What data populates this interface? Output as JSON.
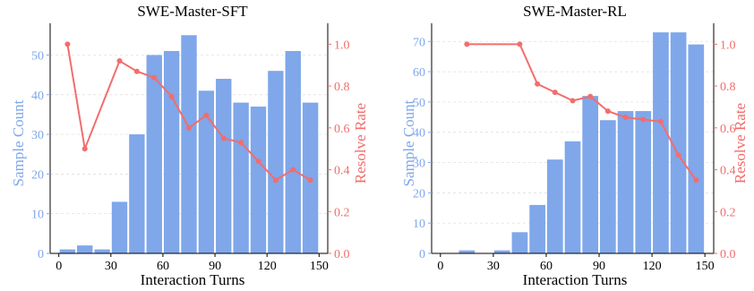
{
  "colors": {
    "bar": "#7fa7ea",
    "line": "#f26d6d",
    "left_axis_text": "#7fa7ea",
    "right_axis_text": "#f26d6d"
  },
  "chart_data": [
    {
      "type": "bar+line",
      "title": "SWE-Master-SFT",
      "xlabel": "Interaction Turns",
      "ylabel_left": "Sample Count",
      "ylabel_right": "Resolve Rate",
      "xlim": [
        -5,
        155
      ],
      "ylim_left": [
        0,
        58
      ],
      "ylim_right": [
        0,
        1.1
      ],
      "xticks": [
        0,
        30,
        60,
        90,
        120,
        150
      ],
      "yticks_left": [
        0,
        10,
        20,
        30,
        40,
        50
      ],
      "yticks_right": [
        "0.0",
        "0.2",
        "0.4",
        "0.6",
        "0.8",
        "1.0"
      ],
      "bin_width": 10,
      "bars": {
        "x": [
          5,
          15,
          25,
          35,
          45,
          55,
          65,
          75,
          85,
          95,
          105,
          115,
          125,
          135,
          145
        ],
        "values": [
          1,
          2,
          1,
          13,
          30,
          50,
          51,
          55,
          41,
          44,
          38,
          37,
          46,
          51,
          38
        ]
      },
      "line": {
        "x": [
          5,
          15,
          35,
          45,
          55,
          65,
          75,
          85,
          95,
          105,
          115,
          125,
          135,
          145
        ],
        "values": [
          1.0,
          0.5,
          0.92,
          0.87,
          0.84,
          0.75,
          0.6,
          0.66,
          0.55,
          0.53,
          0.44,
          0.35,
          0.4,
          0.35
        ]
      }
    },
    {
      "type": "bar+line",
      "title": "SWE-Master-RL",
      "xlabel": "Interaction Turns",
      "ylabel_left": "Sample Count",
      "ylabel_right": "Resolve Rate",
      "xlim": [
        -5,
        155
      ],
      "ylim_left": [
        0,
        76
      ],
      "ylim_right": [
        0,
        1.1
      ],
      "xticks": [
        0,
        30,
        60,
        90,
        120,
        150
      ],
      "yticks_left": [
        0,
        10,
        20,
        30,
        40,
        50,
        60,
        70
      ],
      "yticks_right": [
        "0.0",
        "0.2",
        "0.4",
        "0.6",
        "0.8",
        "1.0"
      ],
      "bin_width": 10,
      "bars": {
        "x": [
          5,
          15,
          25,
          35,
          45,
          55,
          65,
          75,
          85,
          95,
          105,
          115,
          125,
          135,
          145
        ],
        "values": [
          0,
          1,
          0,
          1,
          7,
          16,
          31,
          37,
          52,
          44,
          47,
          47,
          73,
          73,
          69
        ]
      },
      "line": {
        "x": [
          15,
          45,
          55,
          65,
          75,
          85,
          95,
          105,
          115,
          125,
          135,
          145
        ],
        "values": [
          1.0,
          1.0,
          0.81,
          0.77,
          0.73,
          0.75,
          0.68,
          0.65,
          0.64,
          0.63,
          0.47,
          0.35
        ]
      }
    }
  ]
}
